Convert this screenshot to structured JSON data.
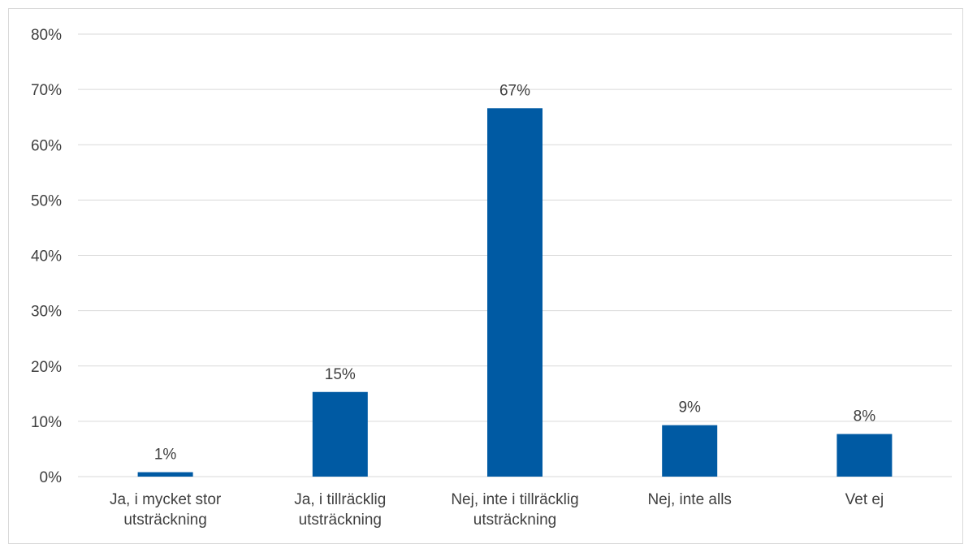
{
  "chart_data": {
    "type": "bar",
    "categories": [
      [
        "Ja, i mycket stor",
        "utsträckning"
      ],
      [
        "Ja, i tillräcklig",
        "utsträckning"
      ],
      [
        "Nej, inte i tillräcklig",
        "utsträckning"
      ],
      [
        "Nej, inte alls"
      ],
      [
        "Vet ej"
      ]
    ],
    "values": [
      0.8,
      15.3,
      66.6,
      9.3,
      7.7
    ],
    "data_labels": [
      "1%",
      "15%",
      "67%",
      "9%",
      "8%"
    ],
    "ylim": [
      0,
      80
    ],
    "yticks": [
      "0%",
      "10%",
      "20%",
      "30%",
      "40%",
      "50%",
      "60%",
      "70%",
      "80%"
    ],
    "title": "",
    "xlabel": "",
    "ylabel": "",
    "grid": true,
    "legend": "none",
    "bar_color": "#005AA3",
    "grid_color": "#d9d9d9",
    "text_color": "#404040"
  }
}
